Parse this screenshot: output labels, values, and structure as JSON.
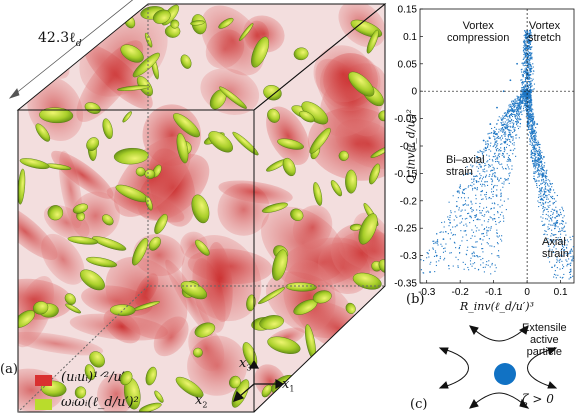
{
  "panel_a": {
    "label": "(a)",
    "box_size": "42.3ℓ",
    "box_size_sub": "d",
    "axis_labels": [
      "x",
      "x",
      "x"
    ],
    "axis_subs": [
      "1",
      "2",
      "3"
    ],
    "legend": [
      {
        "text": "(uᵢuᵢ)¹ᐟ²/u′",
        "color": "#d93030"
      },
      {
        "text": "ωᵢωᵢ(ℓ_d/u′)²",
        "color": "#b9dc2c"
      }
    ]
  },
  "panel_b": {
    "label": "(b)",
    "regions": {
      "vortex_compression": [
        "Vortex",
        "compression"
      ],
      "vortex_stretch": [
        "Vortex",
        "stretch"
      ],
      "biaxial_strain": [
        "Bi–axial",
        "strain"
      ],
      "axial_strain": [
        "Axial",
        "strain"
      ]
    },
    "ylabel": "Q_inv(ℓ_d/u′)²",
    "xlabel": "R_inv(ℓ_d/u′)³"
  },
  "panel_c": {
    "label": "(c)",
    "title_lines": [
      "Extensile",
      "active",
      "particle"
    ],
    "condition": "ζ > 0",
    "particle_color": "#1172c4"
  },
  "chart_data": {
    "type": "scatter",
    "series": [
      {
        "color": "#1f77c4",
        "x": [
          -0.29,
          -0.27,
          -0.25,
          -0.23,
          -0.21,
          -0.19,
          -0.17,
          -0.15,
          -0.13,
          -0.11,
          -0.09,
          -0.07,
          -0.05,
          -0.03,
          -0.01,
          0.0,
          0.01,
          0.03,
          0.05,
          0.07,
          0.09,
          0.11,
          0.13
        ],
        "y": [
          -0.33,
          -0.3,
          -0.27,
          -0.24,
          -0.21,
          -0.18,
          -0.15,
          -0.12,
          -0.09,
          -0.06,
          -0.03,
          0.0,
          0.02,
          0.05,
          0.09,
          0.11,
          0.03,
          -0.06,
          -0.12,
          -0.18,
          -0.24,
          -0.29,
          -0.34
        ]
      }
    ],
    "xlim": [
      -0.32,
      0.14
    ],
    "ylim": [
      -0.35,
      0.15
    ],
    "xticks": [
      "-0.3",
      "-0.2",
      "-0.1",
      "0",
      "0.1"
    ],
    "xtick_values": [
      -0.3,
      -0.2,
      -0.1,
      0,
      0.1
    ],
    "yticks": [
      "0.15",
      "0.1",
      "0.05",
      "0",
      "-0.05",
      "-0.1",
      "-0.15",
      "-0.2",
      "-0.25",
      "-0.3",
      "-0.35"
    ],
    "ytick_values": [
      0.15,
      0.1,
      0.05,
      0,
      -0.05,
      -0.1,
      -0.15,
      -0.2,
      -0.25,
      -0.3,
      -0.35
    ],
    "grid": false,
    "dashed_zero_lines": true
  }
}
